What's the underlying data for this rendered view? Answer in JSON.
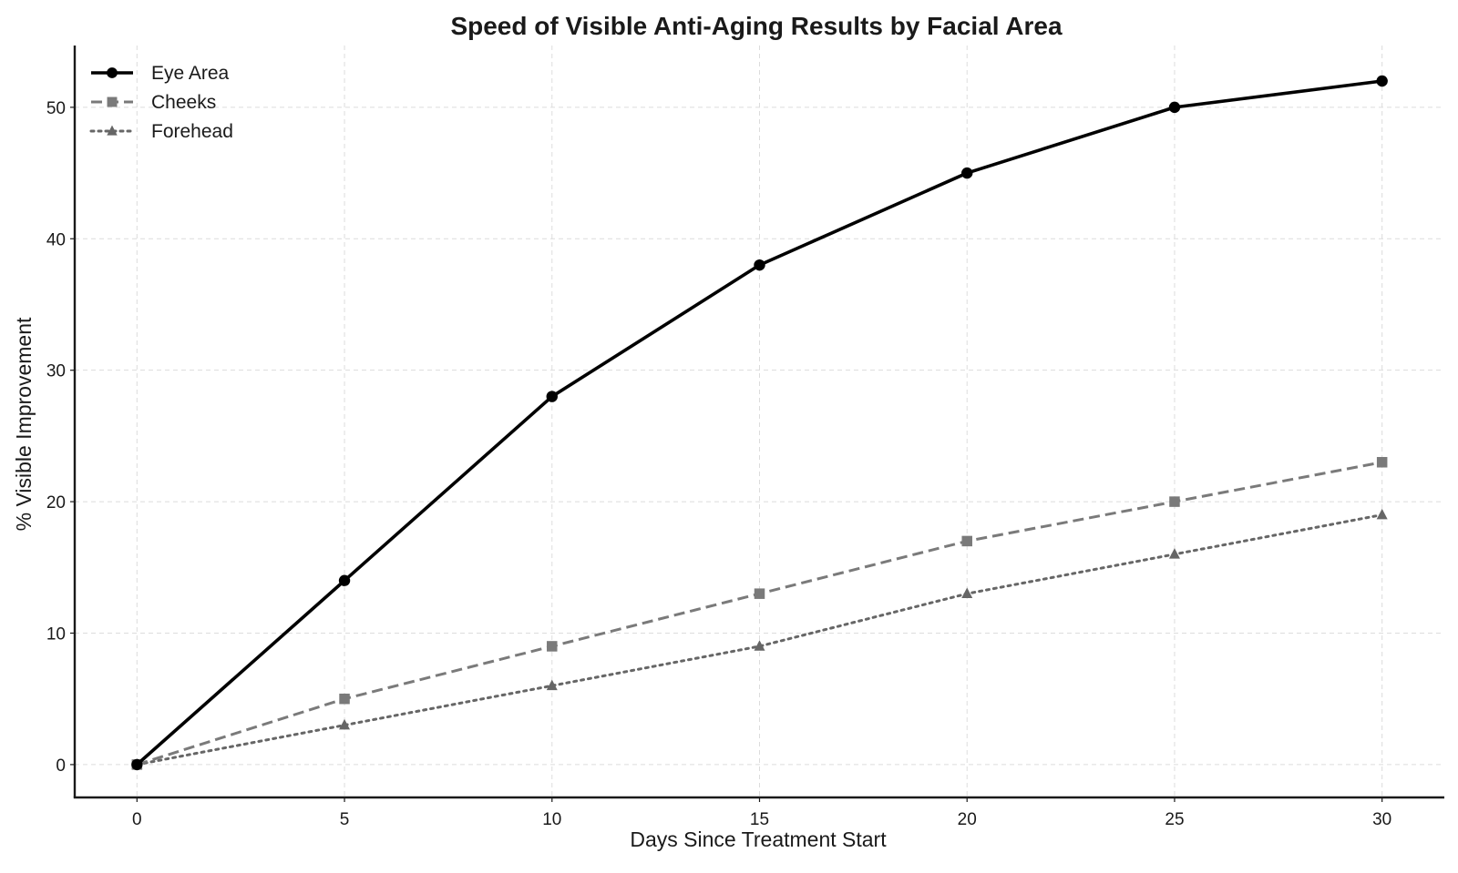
{
  "chart_data": {
    "type": "line",
    "title": "Speed of Visible Anti-Aging Results by Facial Area",
    "xlabel": "Days Since Treatment Start",
    "ylabel": "% Visible Improvement",
    "x": [
      0,
      5,
      10,
      15,
      20,
      25,
      30
    ],
    "x_ticks": [
      "0",
      "5",
      "10",
      "15",
      "20",
      "25",
      "30"
    ],
    "y_ticks": [
      "0",
      "10",
      "20",
      "30",
      "40",
      "50"
    ],
    "xlim": [
      -1.5,
      31.5
    ],
    "ylim": [
      -2.5,
      54.7
    ],
    "grid": true,
    "legend_position": "top-left",
    "series": [
      {
        "name": "Eye Area",
        "values": [
          0,
          14,
          28,
          38,
          45,
          50,
          52
        ],
        "color": "#000000",
        "line_style": "solid",
        "marker": "circle"
      },
      {
        "name": "Cheeks",
        "values": [
          0,
          5,
          9,
          13,
          17,
          20,
          23
        ],
        "color": "#7a7a7a",
        "line_style": "dashed",
        "marker": "square"
      },
      {
        "name": "Forehead",
        "values": [
          0,
          3,
          6,
          9,
          13,
          16,
          19
        ],
        "color": "#666666",
        "line_style": "dotted",
        "marker": "triangle"
      }
    ]
  }
}
